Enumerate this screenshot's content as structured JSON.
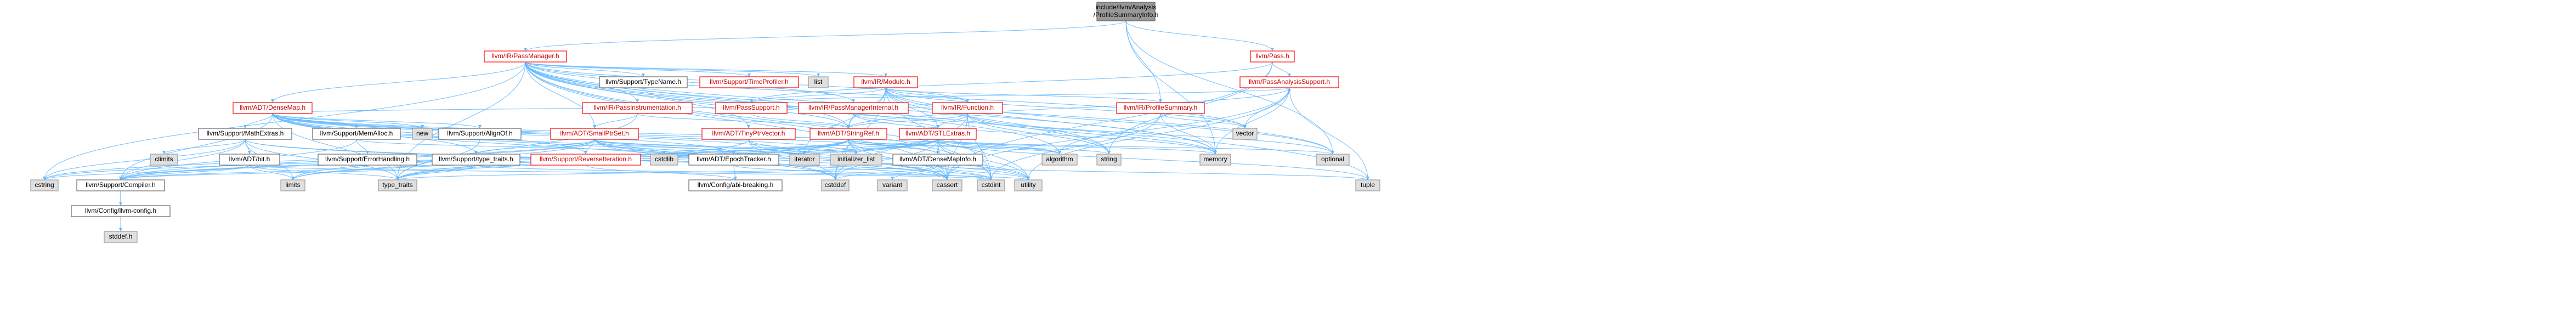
{
  "colors": {
    "root_fill": "#999999",
    "root_stroke": "#666666",
    "normal_fill": "#ffffff",
    "normal_stroke": "#666666",
    "red_stroke": "#ff0000",
    "system_fill": "#e0e0e0",
    "system_stroke": "#999999",
    "edge": "#63b8ff",
    "text": "#000000",
    "red_text": "#cc0000"
  },
  "nodes": {
    "root": {
      "label1": "include/llvm/Analysis",
      "label2": "/ProfileSummaryInfo.h"
    },
    "passmanager": {
      "label": "llvm/IR/PassManager.h"
    },
    "pass": {
      "label": "llvm/Pass.h"
    },
    "profilesummary": {
      "label": "llvm/IR/ProfileSummary.h"
    },
    "densemap": {
      "label": "llvm/ADT/DenseMap.h"
    },
    "typename": {
      "label": "llvm/Support/TypeName.h"
    },
    "timeprofiler": {
      "label": "llvm/Support/TimeProfiler.h"
    },
    "list": {
      "label": "list"
    },
    "module": {
      "label": "llvm/IR/Module.h"
    },
    "passanalysissupport": {
      "label": "llvm/PassAnalysisSupport.h"
    },
    "passinstrumentation": {
      "label": "llvm/IR/PassInstrumentation.h"
    },
    "passsupport": {
      "label": "llvm/PassSupport.h"
    },
    "passmanagerinternal": {
      "label": "llvm/IR/PassManagerInternal.h"
    },
    "function": {
      "label": "llvm/IR/Function.h"
    },
    "mathextras": {
      "label": "llvm/Support/MathExtras.h"
    },
    "memalloc": {
      "label": "llvm/Support/MemAlloc.h"
    },
    "new": {
      "label": "new"
    },
    "alignof": {
      "label": "llvm/Support/AlignOf.h"
    },
    "smallptrset": {
      "label": "llvm/ADT/SmallPtrSet.h"
    },
    "tinyptrvector": {
      "label": "llvm/ADT/TinyPtrVector.h"
    },
    "stringref": {
      "label": "llvm/ADT/StringRef.h"
    },
    "stlextras": {
      "label": "llvm/ADT/STLExtras.h"
    },
    "vector": {
      "label": "vector"
    },
    "climits": {
      "label": "climits"
    },
    "bit": {
      "label": "llvm/ADT/bit.h"
    },
    "errorhandling": {
      "label": "llvm/Support/ErrorHandling.h"
    },
    "typetraits": {
      "label": "llvm/Support/type_traits.h"
    },
    "reverseiteration": {
      "label": "llvm/Support/ReverseIteration.h"
    },
    "cstdlib": {
      "label": "cstdlib"
    },
    "epochtracker": {
      "label": "llvm/ADT/EpochTracker.h"
    },
    "iterator": {
      "label": "iterator"
    },
    "initializer_list": {
      "label": "initializer_list"
    },
    "densemapinfo": {
      "label": "llvm/ADT/DenseMapInfo.h"
    },
    "algorithm": {
      "label": "algorithm"
    },
    "string": {
      "label": "string"
    },
    "memory": {
      "label": "memory"
    },
    "optional": {
      "label": "optional"
    },
    "cstring": {
      "label": "cstring"
    },
    "compiler": {
      "label": "llvm/Support/Compiler.h"
    },
    "limits": {
      "label": "limits"
    },
    "type_traits": {
      "label": "type_traits"
    },
    "abibreaking": {
      "label": "llvm/Config/abi-breaking.h"
    },
    "cstddef": {
      "label": "cstddef"
    },
    "variant": {
      "label": "variant"
    },
    "cassert": {
      "label": "cassert"
    },
    "cstdint": {
      "label": "cstdint"
    },
    "utility": {
      "label": "utility"
    },
    "tuple": {
      "label": "tuple"
    },
    "llvmconfig": {
      "label": "llvm/Config/llvm-config.h"
    },
    "stddef": {
      "label": "stddef.h"
    }
  }
}
